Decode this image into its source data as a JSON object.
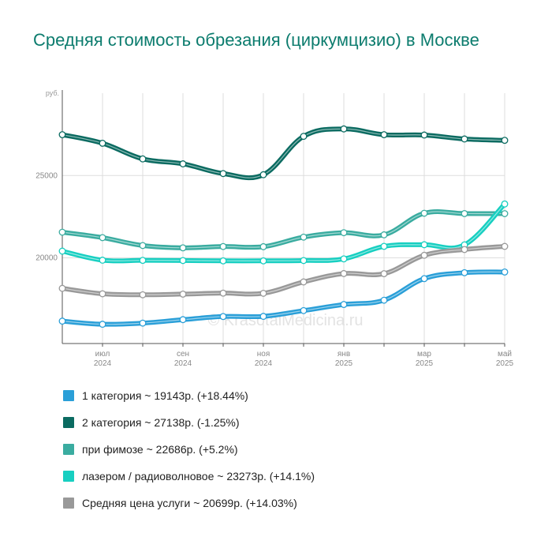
{
  "title": "Средняя стоимость обрезания (циркумцизио) в Москве",
  "watermark": "© KrasotaiMedicina.ru",
  "chart_data": {
    "type": "line",
    "y_unit": "руб.",
    "yticks": [
      20000,
      25000
    ],
    "ylim": [
      14800,
      30000
    ],
    "grid": true,
    "x_count": 12,
    "xticks": [
      {
        "index": 1,
        "month": "июл",
        "year": "2024"
      },
      {
        "index": 3,
        "month": "сен",
        "year": "2024"
      },
      {
        "index": 5,
        "month": "ноя",
        "year": "2024"
      },
      {
        "index": 7,
        "month": "янв",
        "year": "2025"
      },
      {
        "index": 9,
        "month": "мар",
        "year": "2025"
      },
      {
        "index": 11,
        "month": "май",
        "year": "2025"
      }
    ],
    "series": [
      {
        "name": "1 категория",
        "legend": "1 категория ~ 19143р. (+18.44%)",
        "color": "#2a9fd8",
        "values": [
          16160,
          15970,
          16040,
          16250,
          16440,
          16450,
          16800,
          17170,
          17430,
          18740,
          19100,
          19143
        ]
      },
      {
        "name": "2 категория",
        "legend": "2 категория ~ 27138р. (-1.25%)",
        "color": "#0b6b61",
        "values": [
          27480,
          26960,
          26010,
          25710,
          25120,
          25050,
          27380,
          27830,
          27480,
          27460,
          27220,
          27138
        ]
      },
      {
        "name": "при фимозе",
        "legend": "при фимозе ~ 22686р. (+5.2%)",
        "color": "#3aaca0",
        "values": [
          21560,
          21230,
          20750,
          20610,
          20690,
          20680,
          21260,
          21530,
          21400,
          22710,
          22690,
          22686
        ]
      },
      {
        "name": "лазером / радиоволновое",
        "legend": "лазером / радиоволновое ~ 23273р. (+14.1%)",
        "color": "#17cfc1",
        "values": [
          20410,
          19860,
          19850,
          19840,
          19820,
          19820,
          19840,
          19940,
          20700,
          20800,
          20790,
          23273
        ]
      },
      {
        "name": "Средняя цена услуги",
        "legend": "Средняя цена услуги ~ 20699р. (+14.03%)",
        "color": "#999999",
        "values": [
          18150,
          17820,
          17760,
          17800,
          17860,
          17850,
          18540,
          19050,
          19040,
          20160,
          20510,
          20699
        ]
      }
    ]
  }
}
